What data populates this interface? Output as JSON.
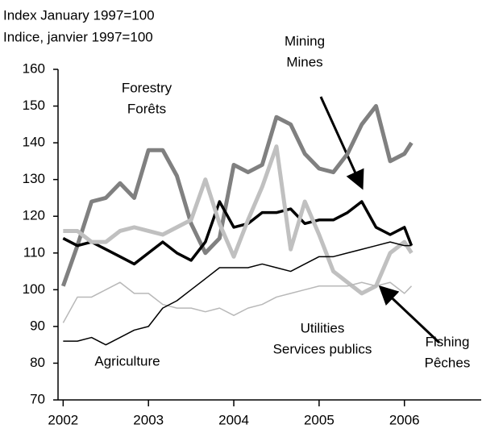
{
  "chart_data": {
    "type": "line",
    "title": [
      "Index January 1997=100",
      "Indice, janvier 1997=100"
    ],
    "x": [
      2002,
      2002.167,
      2002.333,
      2002.5,
      2002.667,
      2002.833,
      2003,
      2003.167,
      2003.333,
      2003.5,
      2003.667,
      2003.833,
      2004,
      2004.167,
      2004.333,
      2004.5,
      2004.667,
      2004.833,
      2005,
      2005.167,
      2005.333,
      2005.5,
      2005.667,
      2005.833,
      2006,
      2006.083
    ],
    "series": [
      {
        "name": [
          "Forestry",
          "Forêts"
        ],
        "color": "#808080",
        "width": 5,
        "values": [
          101,
          112,
          124,
          125,
          129,
          125,
          138,
          138,
          131,
          118,
          110,
          114,
          134,
          132,
          134,
          147,
          145,
          137,
          133,
          132,
          137,
          145,
          150,
          135,
          137,
          140
        ]
      },
      {
        "name": [
          "Mining",
          "Mines"
        ],
        "color": "#000000",
        "width": 3.5,
        "values": [
          114,
          112,
          113,
          111,
          109,
          107,
          110,
          113,
          110,
          108,
          113,
          124,
          117,
          118,
          121,
          121,
          122,
          118,
          119,
          119,
          121,
          124,
          117,
          115,
          117,
          112
        ]
      },
      {
        "name": [
          "Fishing",
          "Pêches"
        ],
        "color": "#c0c0c0",
        "width": 5,
        "values": [
          116,
          116,
          113,
          113,
          116,
          117,
          116,
          115,
          117,
          119,
          130,
          118,
          109,
          119,
          128,
          139,
          111,
          124,
          115,
          105,
          102,
          99,
          101,
          110,
          113,
          110
        ]
      },
      {
        "name": [
          "Utilities",
          "Services publics"
        ],
        "color": "#b8b8b8",
        "width": 1.5,
        "values": [
          91,
          98,
          98,
          100,
          102,
          99,
          99,
          96,
          95,
          95,
          94,
          95,
          93,
          95,
          96,
          98,
          99,
          100,
          101,
          101,
          101,
          102,
          101,
          102,
          99,
          101
        ]
      },
      {
        "name": [
          "Agriculture"
        ],
        "color": "#000000",
        "width": 1.5,
        "values": [
          86,
          86,
          87,
          85,
          87,
          89,
          90,
          95,
          97,
          100,
          103,
          106,
          106,
          106,
          107,
          106,
          105,
          107,
          109,
          109,
          110,
          111,
          112,
          113,
          112,
          112
        ]
      }
    ],
    "xlim": [
      2001.94,
      2006.9
    ],
    "xticks": [
      2002,
      2003,
      2004,
      2005,
      2006
    ],
    "ylim": [
      70,
      160
    ],
    "yticks": [
      70,
      80,
      90,
      100,
      110,
      120,
      130,
      140,
      150,
      160
    ]
  }
}
